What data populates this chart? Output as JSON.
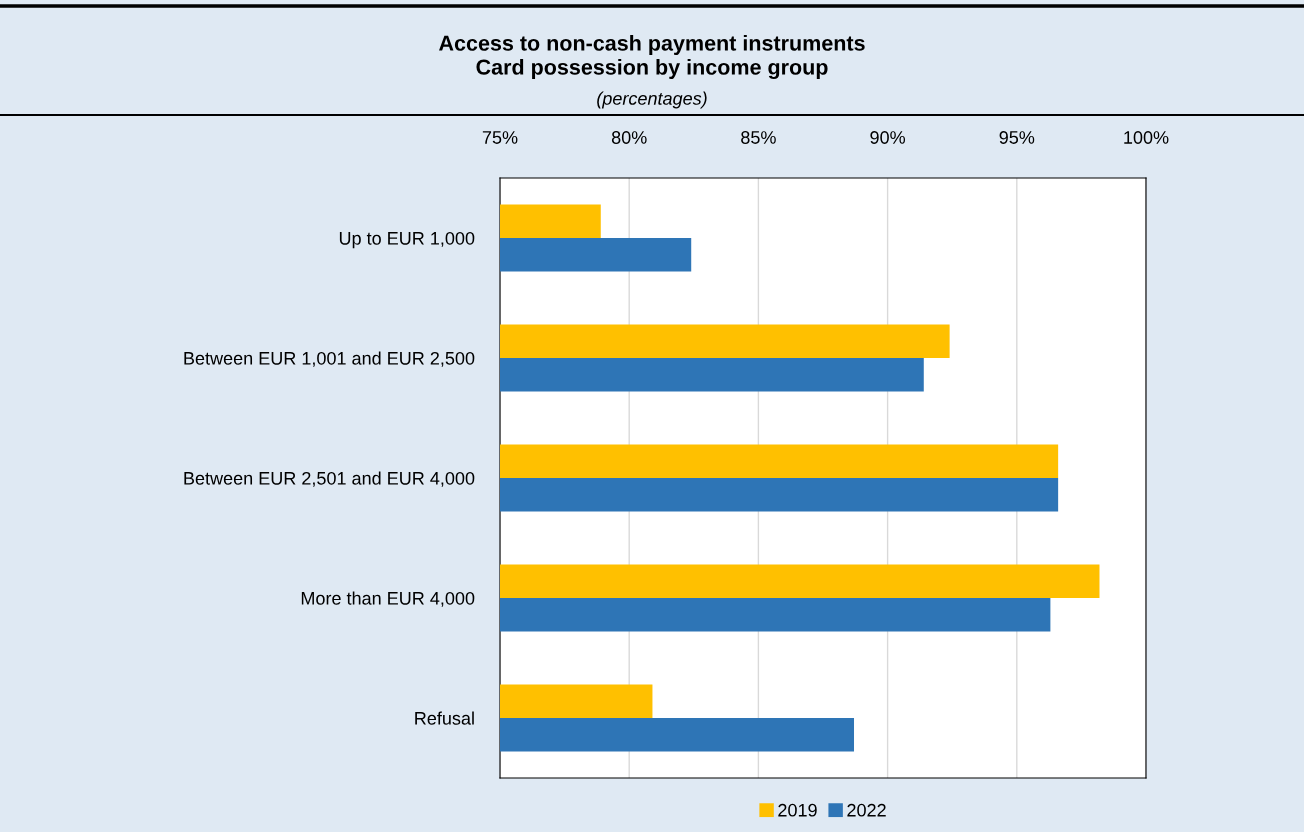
{
  "chart_data": {
    "type": "bar",
    "orientation": "horizontal",
    "title": "Access to non-cash payment instruments\nCard possession by income group",
    "subtitle": "(percentages)",
    "categories": [
      "Up to EUR 1,000",
      "Between EUR 1,001 and EUR 2,500",
      "Between EUR 2,501 and EUR 4,000",
      "More than EUR 4,000",
      "Refusal"
    ],
    "series": [
      {
        "name": "2019",
        "color": "#ffc000",
        "values": [
          78.9,
          92.4,
          96.6,
          98.2,
          80.9
        ]
      },
      {
        "name": "2022",
        "color": "#2e75b6",
        "values": [
          82.4,
          91.4,
          96.6,
          96.3,
          88.7
        ]
      }
    ],
    "xlim": [
      75,
      100
    ],
    "xticks": [
      {
        "value": 75,
        "label": "75%"
      },
      {
        "value": 80,
        "label": "80%"
      },
      {
        "value": 85,
        "label": "85%"
      },
      {
        "value": 90,
        "label": "90%"
      },
      {
        "value": 95,
        "label": "95%"
      },
      {
        "value": 100,
        "label": "100%"
      }
    ],
    "grid": "x",
    "legend": "bottom"
  }
}
